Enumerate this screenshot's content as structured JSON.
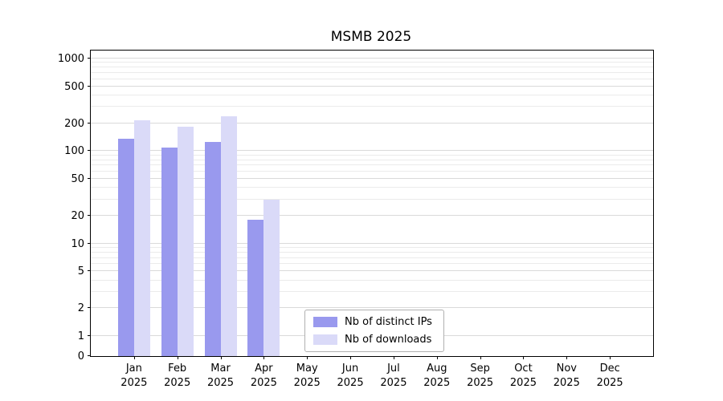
{
  "title": "MSMB 2025",
  "chart_data": {
    "type": "bar",
    "title": "MSMB 2025",
    "categories": [
      "Jan",
      "Feb",
      "Mar",
      "Apr",
      "May",
      "Jun",
      "Jul",
      "Aug",
      "Sep",
      "Oct",
      "Nov",
      "Dec"
    ],
    "year": "2025",
    "series": [
      {
        "name": "Nb of distinct IPs",
        "color": "#9999ee",
        "values": [
          135,
          110,
          125,
          18,
          0,
          0,
          0,
          0,
          0,
          0,
          0,
          0
        ]
      },
      {
        "name": "Nb of downloads",
        "color": "#dadaf8",
        "values": [
          215,
          185,
          240,
          30,
          0,
          0,
          0,
          0,
          0,
          0,
          0,
          0
        ]
      }
    ],
    "xlabel": "",
    "ylabel": "",
    "yscale": "symlog",
    "yticks": [
      0,
      1,
      2,
      5,
      10,
      20,
      50,
      100,
      200,
      500,
      1000
    ],
    "ylim": [
      0,
      1200
    ],
    "grid": "horizontal, major and minor, light gray",
    "legend_position": "lower center inside axes",
    "colors": {
      "bar_distinct_ips": "#9999ee",
      "bar_downloads": "#dadaf8",
      "grid_major": "#dadada",
      "grid_minor": "#ebebeb",
      "axis": "#000000",
      "background": "#ffffff"
    }
  }
}
